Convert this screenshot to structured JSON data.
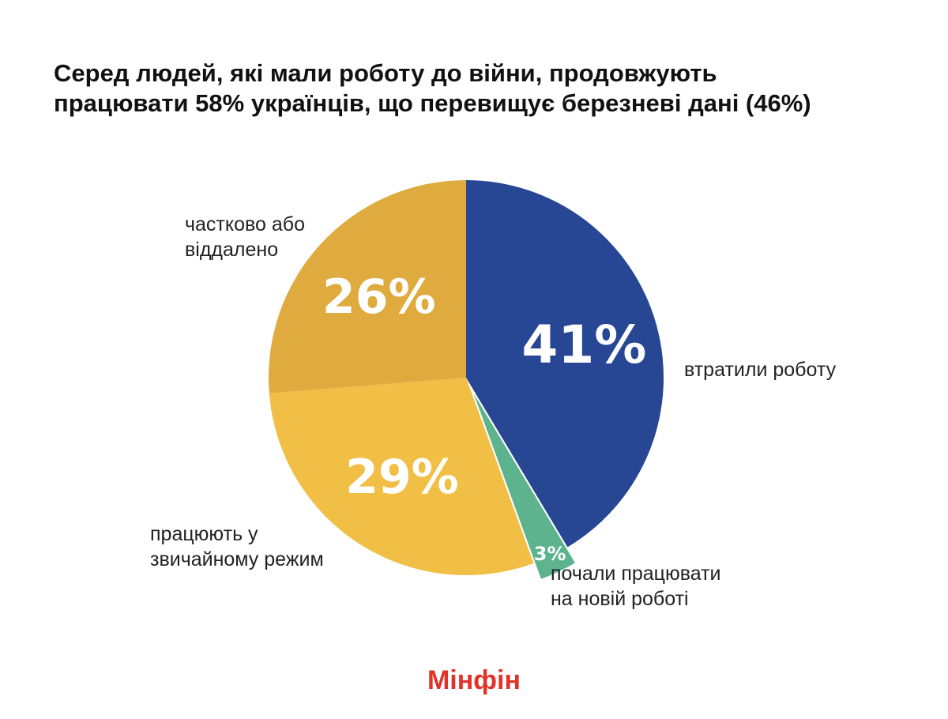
{
  "title_lines": [
    "Серед людей, які мали роботу до війни, продовжують",
    "працювати 58% українців, що перевищує березневі дані (46%)"
  ],
  "brand": "Мінфін",
  "colors": {
    "lost_job": "#274693",
    "new_job": "#5cb38e",
    "normal_mode": "#f1bf46",
    "partial_remote": "#dfab3f"
  },
  "chart_data": {
    "type": "pie",
    "slices": [
      {
        "key": "lost_job",
        "label_lines": [
          "втратили роботу"
        ],
        "value": 41,
        "value_label": "41%"
      },
      {
        "key": "new_job",
        "label_lines": [
          "почали працювати",
          "на новій роботі"
        ],
        "value": 3,
        "value_label": "3%"
      },
      {
        "key": "normal_mode",
        "label_lines": [
          "працюють у",
          "звичайному режим"
        ],
        "value": 29,
        "value_label": "29%"
      },
      {
        "key": "partial_remote",
        "label_lines": [
          "частково або",
          "віддалено"
        ],
        "value": 26,
        "value_label": "26%"
      }
    ]
  }
}
